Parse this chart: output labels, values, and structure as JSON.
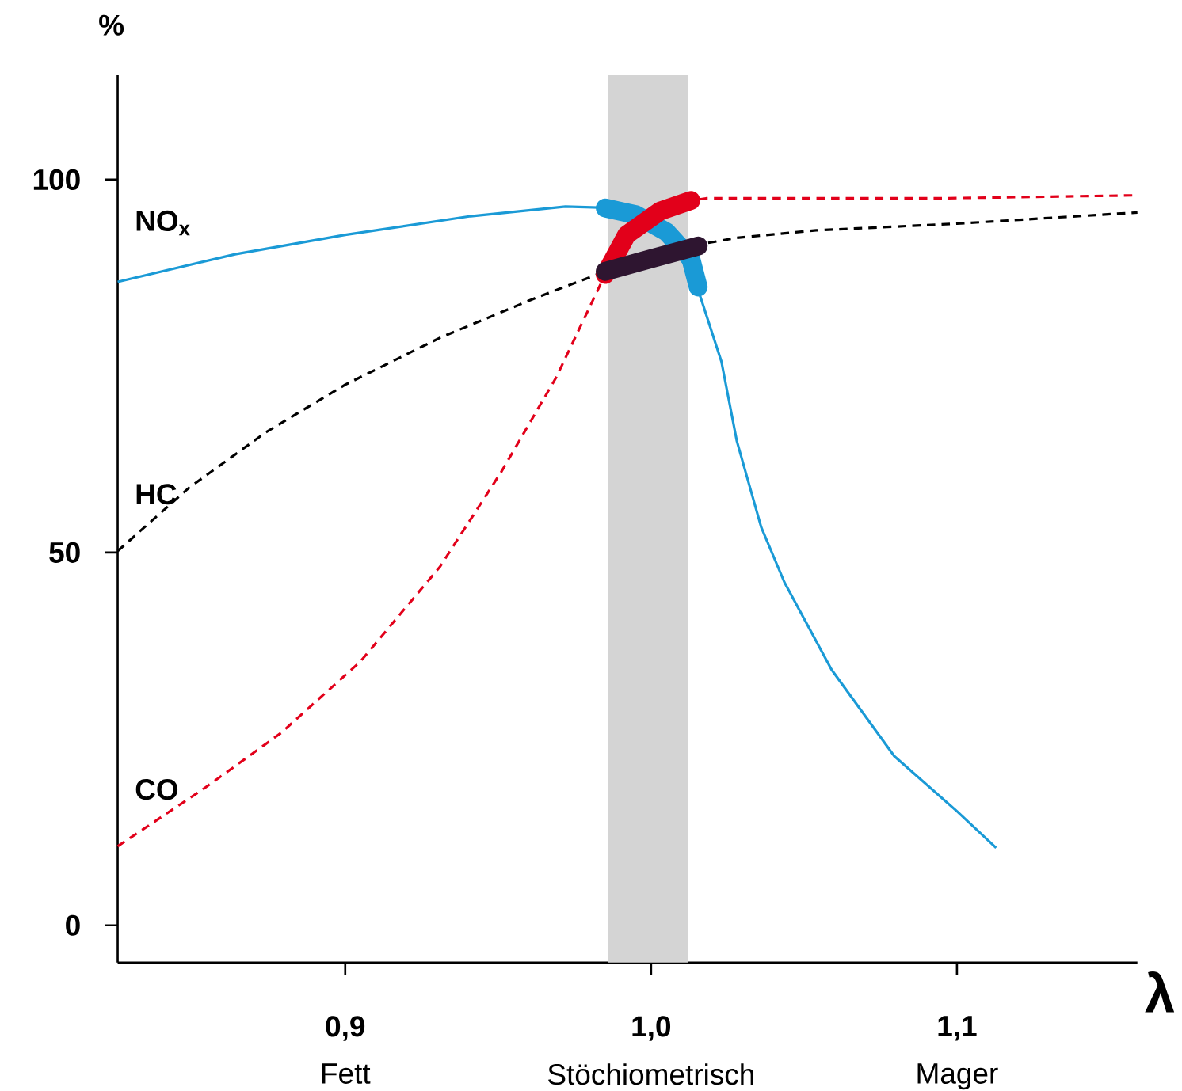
{
  "chart_data": {
    "type": "line",
    "ylabel": "%",
    "xlabel": "λ",
    "xlim": [
      0.8256,
      1.159
    ],
    "ylim": [
      -5,
      114
    ],
    "xticks": [
      {
        "value": 0.9,
        "label": "0,9"
      },
      {
        "value": 1.0,
        "label": "1,0"
      },
      {
        "value": 1.1,
        "label": "1,1"
      }
    ],
    "yticks": [
      0,
      50,
      100
    ],
    "annotations": [
      "Fett",
      "Stöchiometrisch",
      "Mager"
    ],
    "bands": [
      {
        "axis": "x",
        "from": 0.986,
        "to": 1.012,
        "color": "#d4d4d4"
      }
    ],
    "series": [
      {
        "name": "NO$_{x}$",
        "color": "#1a9ad6",
        "line_style": "solid",
        "x": [
          0.8256,
          0.864,
          0.9,
          0.941,
          0.972,
          0.987,
          0.997,
          1.005,
          1.0154,
          1.023,
          1.028,
          1.036,
          1.0436,
          1.059,
          1.0795,
          1.1,
          1.1128
        ],
        "values": [
          86.3,
          90.0,
          92.6,
          95.1,
          96.4,
          96.2,
          95.1,
          93,
          85.2,
          75.6,
          65,
          53.4,
          46,
          34.3,
          22.7,
          15.3,
          10.4
        ]
      },
      {
        "name": "HC",
        "color": "#000000",
        "line_style": "dashed",
        "x": [
          0.8256,
          0.849,
          0.874,
          0.9,
          0.931,
          0.962,
          0.985,
          1.0,
          1.013,
          1.028,
          1.054,
          1.1,
          1.159
        ],
        "values": [
          50.2,
          58.7,
          66.1,
          72.5,
          78.8,
          84.1,
          87.7,
          89.4,
          91.1,
          92.2,
          93.2,
          94.1,
          95.6
        ]
      },
      {
        "name": "CO",
        "color": "#e2001a",
        "line_style": "dashed",
        "x": [
          0.8256,
          0.854,
          0.879,
          0.905,
          0.931,
          0.951,
          0.969,
          0.985,
          0.992,
          1.003,
          1.013,
          1.018,
          1.095,
          1.159
        ],
        "values": [
          10.6,
          18.4,
          25.8,
          35.4,
          48.1,
          60.8,
          73.5,
          87.3,
          92.6,
          95.8,
          97.2,
          97.5,
          97.5,
          97.9
        ]
      },
      {
        "color": "#1a9ad6",
        "line_style": "solid",
        "x": [
          0.985,
          0.995,
          1.005,
          1.013,
          1.0154
        ],
        "values": [
          96.2,
          95.3,
          93,
          89.4,
          85.6
        ]
      },
      {
        "color": "#e2001a",
        "line_style": "solid",
        "x": [
          0.985,
          0.992,
          1.003,
          1.013
        ],
        "values": [
          87.3,
          92.6,
          95.8,
          97.2
        ]
      },
      {
        "color": "#2e1530",
        "line_style": "solid",
        "x": [
          0.985,
          1.0,
          1.0154
        ],
        "values": [
          87.7,
          89.4,
          91.1
        ]
      }
    ]
  }
}
